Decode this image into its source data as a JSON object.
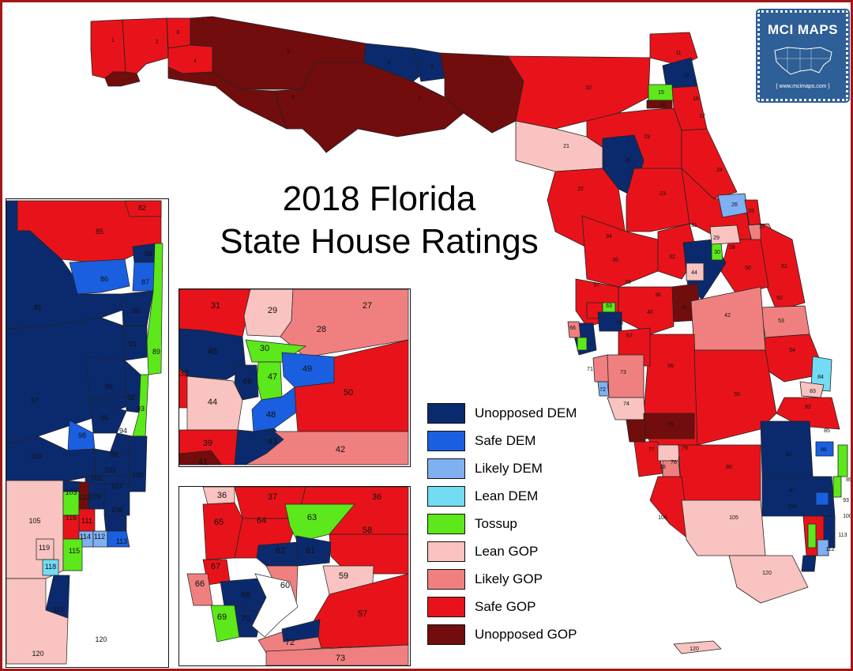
{
  "title": {
    "line1": "2018 Florida",
    "line2": "State House Ratings"
  },
  "legend": [
    {
      "label": "Unopposed DEM",
      "color": "#0b2a6e"
    },
    {
      "label": "Safe DEM",
      "color": "#1a5fe0"
    },
    {
      "label": "Likely DEM",
      "color": "#7fb0f2"
    },
    {
      "label": "Lean DEM",
      "color": "#73dcf5"
    },
    {
      "label": "Tossup",
      "color": "#5ce81a"
    },
    {
      "label": "Lean GOP",
      "color": "#f8c3c0"
    },
    {
      "label": "Likely GOP",
      "color": "#f08080"
    },
    {
      "label": "Safe GOP",
      "color": "#e8131a"
    },
    {
      "label": "Unopposed GOP",
      "color": "#720d0d"
    }
  ],
  "logo": {
    "name": "MCI MAPS",
    "url": "{ www.mcimaps.com }"
  },
  "main_map_labels": [
    "1",
    "2",
    "3",
    "4",
    "5",
    "6",
    "7",
    "8",
    "9",
    "10",
    "11",
    "12",
    "13",
    "14",
    "15",
    "16",
    "17",
    "18",
    "19",
    "20",
    "21",
    "22",
    "23",
    "24",
    "25",
    "26",
    "27",
    "28",
    "29",
    "30",
    "31",
    "32",
    "33",
    "34",
    "35",
    "36",
    "37",
    "38",
    "39",
    "40",
    "41",
    "42",
    "43",
    "44",
    "45",
    "46",
    "47",
    "48",
    "49",
    "50",
    "51",
    "52",
    "53",
    "54",
    "55",
    "56",
    "57",
    "58",
    "59",
    "60",
    "61",
    "62",
    "63",
    "64",
    "65",
    "66",
    "67",
    "68",
    "69",
    "70",
    "71",
    "72",
    "73",
    "74",
    "75",
    "76",
    "77",
    "78",
    "79",
    "80",
    "81",
    "82",
    "83",
    "84",
    "85",
    "86",
    "87",
    "88",
    "89",
    "90",
    "91",
    "92",
    "93",
    "94",
    "95",
    "96",
    "97",
    "98",
    "99",
    "100",
    "101",
    "102",
    "103",
    "104",
    "105",
    "106",
    "107",
    "108",
    "109",
    "110",
    "111",
    "112",
    "113",
    "114",
    "115",
    "116",
    "117",
    "118",
    "119",
    "120"
  ],
  "inset_south_labels": [
    "82",
    "85",
    "86",
    "87",
    "88",
    "89",
    "90",
    "91",
    "92",
    "93",
    "94",
    "95",
    "96",
    "97",
    "98",
    "99",
    "100",
    "101",
    "102",
    "103",
    "104",
    "105",
    "106",
    "107",
    "108",
    "109",
    "110",
    "111",
    "112",
    "113",
    "114",
    "115",
    "116",
    "117",
    "118",
    "119",
    "120",
    "81"
  ],
  "inset_central_labels": [
    "31",
    "29",
    "27",
    "28",
    "45",
    "30",
    "32",
    "47",
    "49",
    "46",
    "44",
    "48",
    "50",
    "39",
    "43",
    "41",
    "42"
  ],
  "inset_tampa_labels": [
    "36",
    "37",
    "38",
    "65",
    "64",
    "63",
    "58",
    "62",
    "61",
    "67",
    "60",
    "59",
    "66",
    "68",
    "57",
    "69",
    "70",
    "72",
    "73"
  ]
}
